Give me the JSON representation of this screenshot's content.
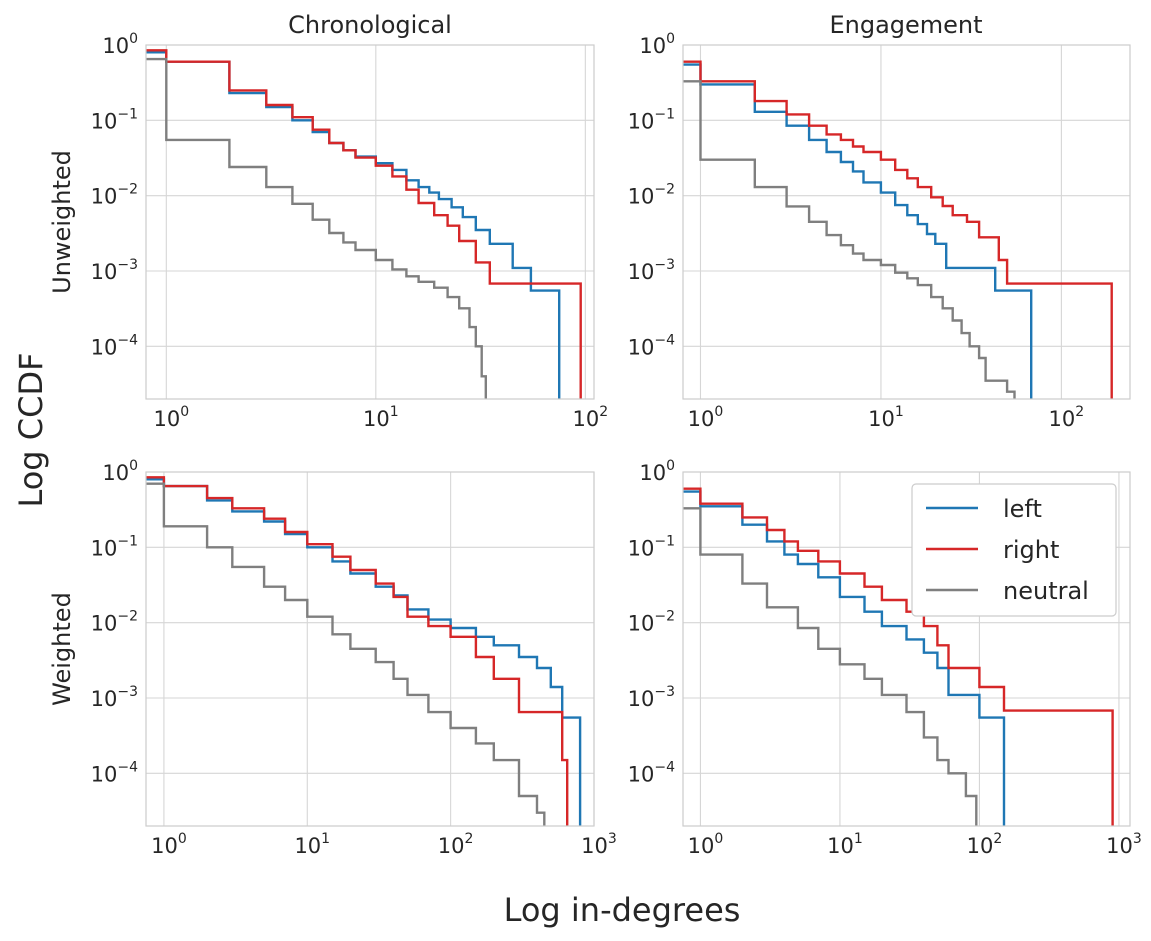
{
  "figure": {
    "xlabel": "Log in-degrees",
    "ylabel": "Log CCDF",
    "col_titles": [
      "Chronological",
      "Engagement"
    ],
    "row_labels": [
      "Unweighted",
      "Weighted"
    ],
    "colors": {
      "left": "#1f77b4",
      "right": "#d62728",
      "neutral": "#7f7f7f",
      "grid": "#d6d6d6"
    }
  },
  "legend": {
    "placement": "upper-right of bottom-right panel",
    "entries": [
      {
        "label": "left",
        "color": "#1f77b4"
      },
      {
        "label": "right",
        "color": "#d62728"
      },
      {
        "label": "neutral",
        "color": "#7f7f7f"
      }
    ]
  },
  "chart_data": [
    {
      "type": "line",
      "panel": "top-left",
      "title": "Chronological",
      "ylabel": "Unweighted",
      "xscale": "log",
      "yscale": "log",
      "xlim": [
        0.8,
        110
      ],
      "ylim": [
        2e-05,
        1.0
      ],
      "xticks": [
        {
          "base": "10",
          "exp": "0"
        },
        {
          "base": "10",
          "exp": "1"
        },
        {
          "base": "10",
          "exp": "2"
        }
      ],
      "yticks": [
        {
          "base": "10",
          "exp": "−4"
        },
        {
          "base": "10",
          "exp": "−3"
        },
        {
          "base": "10",
          "exp": "−2"
        },
        {
          "base": "10",
          "exp": "−1"
        },
        {
          "base": "10",
          "exp": "0"
        }
      ],
      "step": "post",
      "series": [
        {
          "name": "left",
          "x": [
            0.8,
            1,
            2,
            3,
            4,
            5,
            6,
            7,
            8,
            10,
            12,
            14,
            16,
            18,
            20,
            23,
            26,
            30,
            35,
            45,
            55,
            75
          ],
          "y": [
            0.8,
            0.6,
            0.23,
            0.15,
            0.1,
            0.07,
            0.05,
            0.04,
            0.033,
            0.027,
            0.022,
            0.016,
            0.013,
            0.011,
            0.009,
            0.007,
            0.0052,
            0.0035,
            0.0023,
            0.0011,
            0.00055,
            2e-05
          ]
        },
        {
          "name": "right",
          "x": [
            0.8,
            1,
            2,
            3,
            4,
            5,
            6,
            7,
            8,
            10,
            12,
            14,
            16,
            19,
            22,
            25,
            30,
            35,
            95
          ],
          "y": [
            0.85,
            0.6,
            0.25,
            0.16,
            0.11,
            0.075,
            0.05,
            0.04,
            0.032,
            0.025,
            0.018,
            0.012,
            0.008,
            0.0055,
            0.004,
            0.0025,
            0.0013,
            0.00068,
            2e-05
          ]
        },
        {
          "name": "neutral",
          "x": [
            0.8,
            1,
            2,
            3,
            4,
            5,
            6,
            7,
            8,
            10,
            12,
            14,
            16,
            19,
            22,
            25,
            28,
            30,
            32,
            33.5
          ],
          "y": [
            0.65,
            0.055,
            0.024,
            0.013,
            0.0078,
            0.0048,
            0.0032,
            0.0024,
            0.0019,
            0.0014,
            0.00105,
            0.00085,
            0.00072,
            0.0006,
            0.00045,
            0.00032,
            0.00018,
            0.0001,
            4e-05,
            2e-05
          ]
        }
      ]
    },
    {
      "type": "line",
      "panel": "top-right",
      "title": "Engagement",
      "xscale": "log",
      "yscale": "log",
      "xlim": [
        0.8,
        240
      ],
      "ylim": [
        2e-05,
        1.0
      ],
      "xticks": [
        {
          "base": "10",
          "exp": "0"
        },
        {
          "base": "10",
          "exp": "1"
        },
        {
          "base": "10",
          "exp": "2"
        }
      ],
      "yticks": [
        {
          "base": "10",
          "exp": "−4"
        },
        {
          "base": "10",
          "exp": "−3"
        },
        {
          "base": "10",
          "exp": "−2"
        },
        {
          "base": "10",
          "exp": "−1"
        },
        {
          "base": "10",
          "exp": "0"
        }
      ],
      "step": "post",
      "series": [
        {
          "name": "left",
          "x": [
            0.8,
            1,
            2,
            3,
            4,
            5,
            6,
            7,
            8,
            10,
            12,
            14,
            16,
            18,
            20,
            23,
            43,
            68
          ],
          "y": [
            0.55,
            0.3,
            0.13,
            0.085,
            0.055,
            0.038,
            0.028,
            0.021,
            0.015,
            0.011,
            0.0075,
            0.0055,
            0.0042,
            0.0031,
            0.0023,
            0.0011,
            0.00055,
            2e-05
          ]
        },
        {
          "name": "right",
          "x": [
            0.8,
            1,
            2,
            3,
            4,
            5,
            6,
            7,
            8,
            10,
            12,
            14,
            16,
            19,
            22,
            25,
            30,
            35,
            45,
            50,
            190
          ],
          "y": [
            0.6,
            0.33,
            0.18,
            0.12,
            0.085,
            0.065,
            0.055,
            0.045,
            0.038,
            0.03,
            0.022,
            0.017,
            0.013,
            0.0095,
            0.0073,
            0.0055,
            0.0045,
            0.0028,
            0.0014,
            0.00068,
            2e-05
          ]
        },
        {
          "name": "neutral",
          "x": [
            0.8,
            1,
            2,
            3,
            4,
            5,
            6,
            7,
            8,
            10,
            12,
            14,
            16,
            19,
            22,
            25,
            28,
            31,
            35,
            38,
            50,
            55
          ],
          "y": [
            0.33,
            0.03,
            0.013,
            0.0072,
            0.0045,
            0.003,
            0.0022,
            0.0017,
            0.0014,
            0.0012,
            0.00095,
            0.0008,
            0.00065,
            0.00045,
            0.00032,
            0.00022,
            0.00015,
            0.0001,
            7e-05,
            3.5e-05,
            2.5e-05,
            2e-05
          ]
        }
      ]
    },
    {
      "type": "line",
      "panel": "bottom-left",
      "ylabel": "Weighted",
      "xscale": "log",
      "yscale": "log",
      "xlim": [
        0.75,
        1000
      ],
      "ylim": [
        2e-05,
        1.0
      ],
      "xticks": [
        {
          "base": "10",
          "exp": "0"
        },
        {
          "base": "10",
          "exp": "1"
        },
        {
          "base": "10",
          "exp": "2"
        },
        {
          "base": "10",
          "exp": "3"
        }
      ],
      "yticks": [
        {
          "base": "10",
          "exp": "−4"
        },
        {
          "base": "10",
          "exp": "−3"
        },
        {
          "base": "10",
          "exp": "−2"
        },
        {
          "base": "10",
          "exp": "−1"
        },
        {
          "base": "10",
          "exp": "0"
        }
      ],
      "step": "post",
      "series": [
        {
          "name": "left",
          "x": [
            0.75,
            1,
            2,
            3,
            5,
            7,
            10,
            15,
            20,
            30,
            40,
            50,
            70,
            100,
            150,
            200,
            300,
            400,
            500,
            600,
            800
          ],
          "y": [
            0.8,
            0.65,
            0.42,
            0.3,
            0.22,
            0.15,
            0.1,
            0.065,
            0.045,
            0.03,
            0.023,
            0.015,
            0.011,
            0.0085,
            0.0065,
            0.005,
            0.0035,
            0.0025,
            0.0014,
            0.00055,
            2e-05
          ]
        },
        {
          "name": "right",
          "x": [
            0.75,
            1,
            2,
            3,
            5,
            7,
            10,
            15,
            20,
            30,
            40,
            50,
            70,
            100,
            150,
            200,
            300,
            600,
            650
          ],
          "y": [
            0.85,
            0.65,
            0.45,
            0.33,
            0.24,
            0.16,
            0.11,
            0.075,
            0.05,
            0.033,
            0.022,
            0.012,
            0.009,
            0.0065,
            0.0035,
            0.0018,
            0.00065,
            0.00015,
            2e-05
          ]
        },
        {
          "name": "neutral",
          "x": [
            0.75,
            1,
            2,
            3,
            5,
            7,
            10,
            15,
            20,
            30,
            40,
            50,
            70,
            100,
            150,
            200,
            300,
            400,
            450
          ],
          "y": [
            0.7,
            0.19,
            0.1,
            0.055,
            0.03,
            0.02,
            0.012,
            0.007,
            0.0045,
            0.003,
            0.0018,
            0.0011,
            0.00065,
            0.0004,
            0.00025,
            0.00015,
            5e-05,
            3e-05,
            2e-05
          ]
        }
      ]
    },
    {
      "type": "line",
      "panel": "bottom-right",
      "xscale": "log",
      "yscale": "log",
      "xlim": [
        0.75,
        1200
      ],
      "ylim": [
        2e-05,
        1.0
      ],
      "xticks": [
        {
          "base": "10",
          "exp": "0"
        },
        {
          "base": "10",
          "exp": "1"
        },
        {
          "base": "10",
          "exp": "2"
        },
        {
          "base": "10",
          "exp": "3"
        }
      ],
      "yticks": [
        {
          "base": "10",
          "exp": "−4"
        },
        {
          "base": "10",
          "exp": "−3"
        },
        {
          "base": "10",
          "exp": "−2"
        },
        {
          "base": "10",
          "exp": "−1"
        },
        {
          "base": "10",
          "exp": "0"
        }
      ],
      "step": "post",
      "series": [
        {
          "name": "left",
          "x": [
            0.75,
            1,
            2,
            3,
            4,
            5,
            7,
            10,
            15,
            20,
            30,
            40,
            50,
            60,
            100,
            150
          ],
          "y": [
            0.55,
            0.35,
            0.2,
            0.12,
            0.08,
            0.06,
            0.04,
            0.022,
            0.014,
            0.009,
            0.006,
            0.004,
            0.0025,
            0.0011,
            0.00055,
            2e-05
          ]
        },
        {
          "name": "right",
          "x": [
            0.75,
            1,
            2,
            3,
            4,
            5,
            7,
            10,
            15,
            20,
            30,
            40,
            50,
            60,
            100,
            150,
            900
          ],
          "y": [
            0.6,
            0.38,
            0.25,
            0.17,
            0.12,
            0.09,
            0.065,
            0.045,
            0.03,
            0.02,
            0.014,
            0.009,
            0.005,
            0.0025,
            0.0014,
            0.00068,
            2e-05
          ]
        },
        {
          "name": "neutral",
          "x": [
            0.75,
            1,
            2,
            3,
            5,
            7,
            10,
            15,
            20,
            30,
            40,
            50,
            60,
            80,
            95
          ],
          "y": [
            0.33,
            0.08,
            0.033,
            0.016,
            0.0085,
            0.0045,
            0.0028,
            0.0018,
            0.0011,
            0.00065,
            0.0003,
            0.00015,
            0.0001,
            5e-05,
            2e-05
          ]
        }
      ]
    }
  ]
}
